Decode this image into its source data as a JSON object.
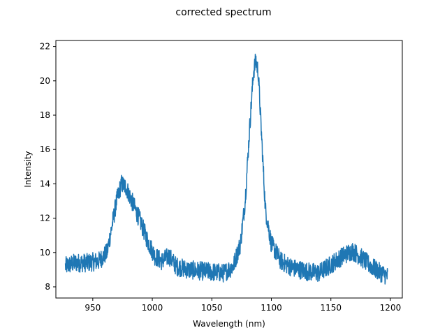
{
  "chart_data": {
    "type": "line",
    "title": "corrected spectrum",
    "xlabel": "Wavelength (nm)",
    "ylabel": "Intensity",
    "xlim": [
      919,
      1210
    ],
    "ylim": [
      7.35,
      22.35
    ],
    "xticks": [
      950,
      1000,
      1050,
      1100,
      1150,
      1200
    ],
    "yticks": [
      8,
      10,
      12,
      14,
      16,
      18,
      20,
      22
    ],
    "grid": false,
    "legend": "none",
    "series": [
      {
        "color": "#1f77b4",
        "x_range": [
          927,
          1198
        ],
        "envelope": [
          [
            927,
            9.2
          ],
          [
            935,
            9.4
          ],
          [
            945,
            9.4
          ],
          [
            955,
            9.5
          ],
          [
            962,
            10.0
          ],
          [
            966,
            11.5
          ],
          [
            970,
            13.0
          ],
          [
            974,
            14.0
          ],
          [
            978,
            13.8
          ],
          [
            984,
            12.8
          ],
          [
            990,
            11.8
          ],
          [
            996,
            10.7
          ],
          [
            1002,
            9.8
          ],
          [
            1008,
            9.5
          ],
          [
            1014,
            9.8
          ],
          [
            1020,
            9.2
          ],
          [
            1030,
            9.0
          ],
          [
            1045,
            8.9
          ],
          [
            1060,
            8.8
          ],
          [
            1068,
            9.2
          ],
          [
            1074,
            10.5
          ],
          [
            1078,
            13.0
          ],
          [
            1082,
            17.5
          ],
          [
            1085,
            20.5
          ],
          [
            1087,
            21.2
          ],
          [
            1089,
            20.5
          ],
          [
            1092,
            16.5
          ],
          [
            1095,
            12.5
          ],
          [
            1100,
            10.5
          ],
          [
            1108,
            9.5
          ],
          [
            1118,
            9.1
          ],
          [
            1130,
            8.9
          ],
          [
            1140,
            8.8
          ],
          [
            1150,
            9.3
          ],
          [
            1160,
            9.8
          ],
          [
            1168,
            10.1
          ],
          [
            1174,
            9.8
          ],
          [
            1182,
            9.3
          ],
          [
            1190,
            8.9
          ],
          [
            1198,
            8.6
          ]
        ],
        "noise_amplitude": 0.55
      }
    ]
  }
}
